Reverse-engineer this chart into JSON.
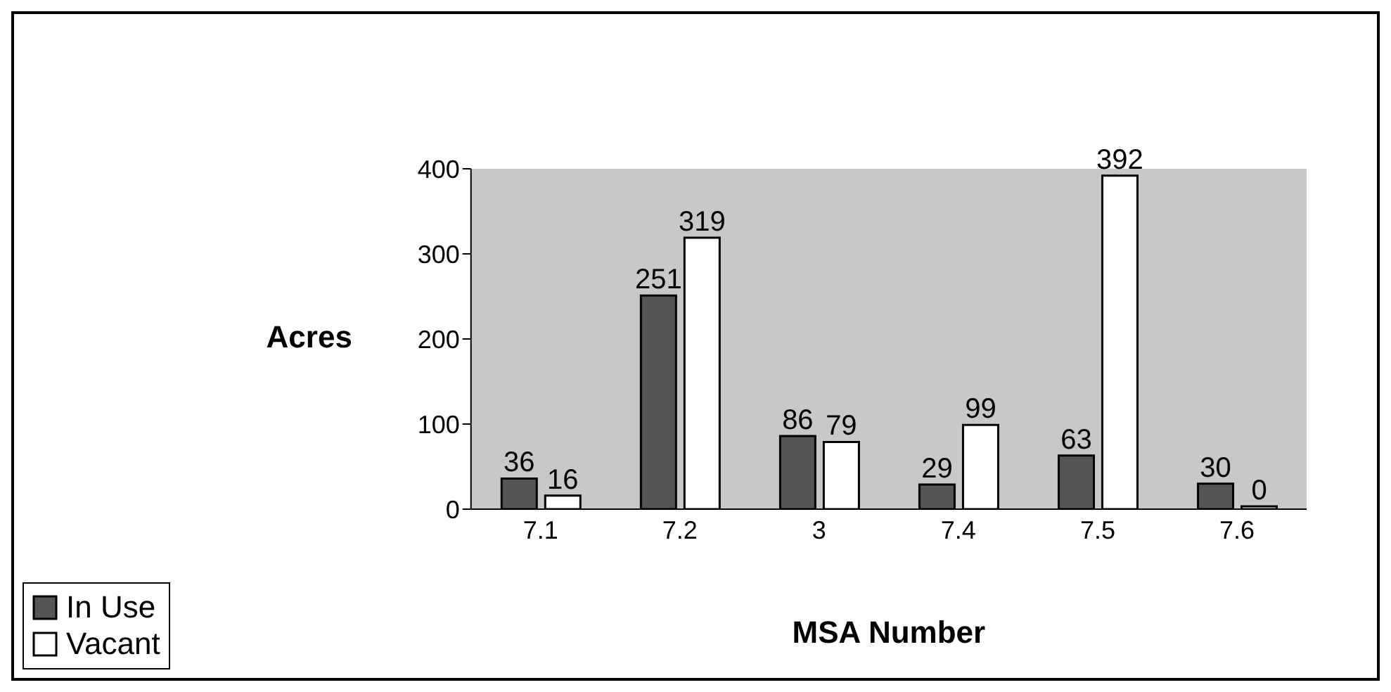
{
  "chart_data": {
    "type": "bar",
    "xlabel": "MSA Number",
    "ylabel": "Acres",
    "categories": [
      "7.1",
      "7.2",
      "3",
      "7.4",
      "7.5",
      "7.6"
    ],
    "series": [
      {
        "name": "In Use",
        "color": "#555555",
        "values": [
          36,
          251,
          86,
          29,
          63,
          30
        ]
      },
      {
        "name": "Vacant",
        "color": "#ffffff",
        "values": [
          16,
          319,
          79,
          99,
          392,
          0
        ]
      }
    ],
    "ylim": [
      0,
      400
    ],
    "yticks": [
      0,
      100,
      200,
      300,
      400
    ],
    "data_labels": true,
    "legend": "bottom left"
  }
}
